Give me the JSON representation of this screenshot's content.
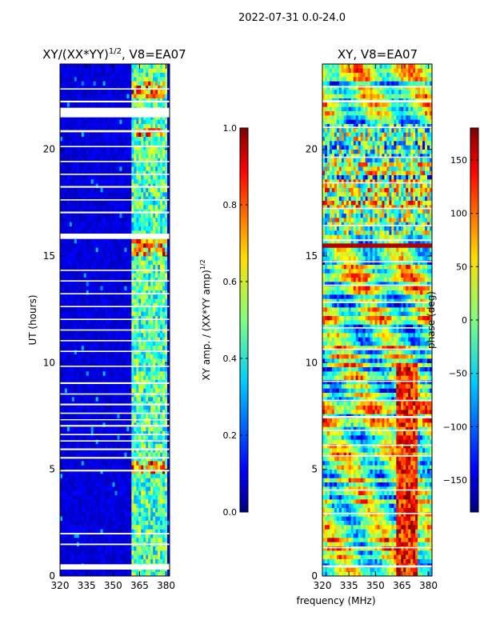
{
  "figure": {
    "suptitle": "2022-07-31 0.0-24.0",
    "xlabel": "frequency (MHz)",
    "ylabel": "UT (hours)"
  },
  "colors": {
    "jet": [
      "#00007f",
      "#0000ff",
      "#0080ff",
      "#00ffff",
      "#7fff7f",
      "#ffff00",
      "#ff8000",
      "#ff0000",
      "#7f0000"
    ],
    "gap": "#ffffff",
    "axis": "#000000"
  },
  "chart_data": [
    {
      "type": "heatmap",
      "title": "XY/(XX*YY)",
      "title_superscript": "1/2",
      "title_suffix": ", V8=EA07",
      "xlabel": "frequency (MHz)",
      "ylabel": "UT (hours)",
      "xlim": [
        320,
        382
      ],
      "ylim": [
        0,
        24
      ],
      "x_ticks": [
        320,
        335,
        350,
        365,
        380
      ],
      "y_ticks": [
        0,
        5,
        10,
        15,
        20
      ],
      "colorbar": {
        "label": "XY amp. / (XX*YY amp)",
        "label_superscript": "1/2",
        "range": [
          0.0,
          1.0
        ],
        "ticks": [
          "0.0",
          "0.2",
          "0.4",
          "0.6",
          "0.8",
          "1.0"
        ]
      },
      "gaps_ut": [
        [
          0.3,
          0.55
        ],
        [
          1.45,
          1.52
        ],
        [
          1.95,
          2.02
        ],
        [
          4.9,
          4.98
        ],
        [
          5.5,
          5.58
        ],
        [
          5.9,
          5.98
        ],
        [
          6.3,
          6.36
        ],
        [
          6.6,
          6.66
        ],
        [
          7.0,
          7.08
        ],
        [
          7.3,
          7.35
        ],
        [
          7.6,
          7.66
        ],
        [
          8.0,
          8.08
        ],
        [
          8.5,
          8.56
        ],
        [
          9.0,
          9.08
        ],
        [
          9.8,
          9.86
        ],
        [
          10.5,
          10.56
        ],
        [
          11.0,
          11.06
        ],
        [
          11.5,
          11.56
        ],
        [
          12.0,
          12.06
        ],
        [
          12.6,
          12.66
        ],
        [
          13.2,
          13.26
        ],
        [
          13.8,
          13.86
        ],
        [
          14.3,
          14.36
        ],
        [
          15.8,
          16.05
        ],
        [
          17.0,
          17.08
        ],
        [
          17.6,
          17.66
        ],
        [
          18.2,
          18.28
        ],
        [
          18.8,
          18.86
        ],
        [
          19.4,
          19.46
        ],
        [
          20.1,
          20.16
        ],
        [
          20.8,
          20.9
        ],
        [
          21.5,
          21.95
        ],
        [
          22.2,
          22.28
        ],
        [
          22.8,
          22.86
        ]
      ],
      "bright_band_mhz": [
        361,
        380
      ],
      "background_amplitude": 0.05,
      "band_amplitude": 0.45
    },
    {
      "type": "heatmap",
      "title": "XY, V8=EA07",
      "xlabel": "frequency (MHz)",
      "ylabel": "",
      "xlim": [
        320,
        382
      ],
      "ylim": [
        0,
        24
      ],
      "x_ticks": [
        320,
        335,
        350,
        365,
        380
      ],
      "y_ticks": [
        0,
        5,
        10,
        15,
        20
      ],
      "colorbar": {
        "label": "phase (deg)",
        "range": [
          -180,
          180
        ],
        "ticks": [
          "150",
          "100",
          "50",
          "0",
          "−50",
          "−100",
          "−150"
        ],
        "tick_values": [
          150,
          100,
          50,
          0,
          -50,
          -100,
          -150
        ]
      },
      "gaps_ut": [
        [
          0.4,
          0.5
        ],
        [
          1.3,
          1.36
        ],
        [
          2.9,
          2.96
        ],
        [
          4.0,
          4.06
        ],
        [
          5.6,
          5.66
        ],
        [
          6.1,
          6.16
        ],
        [
          6.8,
          6.86
        ],
        [
          7.4,
          7.5
        ],
        [
          8.2,
          8.26
        ],
        [
          9.1,
          9.16
        ],
        [
          10.6,
          10.66
        ],
        [
          11.6,
          11.66
        ],
        [
          12.8,
          12.86
        ],
        [
          13.6,
          13.66
        ],
        [
          14.7,
          14.76
        ],
        [
          15.7,
          15.78
        ],
        [
          16.4,
          16.46
        ],
        [
          17.2,
          17.26
        ],
        [
          18.4,
          18.46
        ],
        [
          19.6,
          19.66
        ],
        [
          21.0,
          21.06
        ],
        [
          22.2,
          22.3
        ],
        [
          22.9,
          22.96
        ]
      ]
    }
  ]
}
